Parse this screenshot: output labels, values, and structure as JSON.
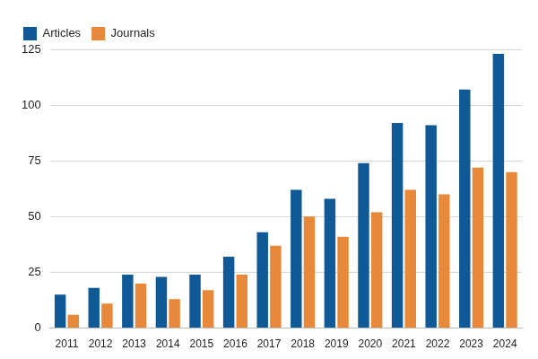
{
  "chart_data": {
    "type": "bar",
    "categories": [
      "2011",
      "2012",
      "2013",
      "2014",
      "2015",
      "2016",
      "2017",
      "2018",
      "2019",
      "2020",
      "2021",
      "2022",
      "2023",
      "2024"
    ],
    "series": [
      {
        "name": "Articles",
        "color": "#0f5a96",
        "values": [
          15,
          18,
          24,
          23,
          24,
          32,
          43,
          62,
          58,
          74,
          92,
          91,
          107,
          123
        ]
      },
      {
        "name": "Journals",
        "color": "#e8883a",
        "values": [
          6,
          11,
          20,
          13,
          17,
          24,
          37,
          50,
          41,
          52,
          62,
          60,
          72,
          70
        ]
      }
    ],
    "ylim": [
      0,
      125
    ],
    "yticks": [
      0,
      25,
      50,
      75,
      100,
      125
    ],
    "grid": true,
    "legend": "top-left"
  }
}
